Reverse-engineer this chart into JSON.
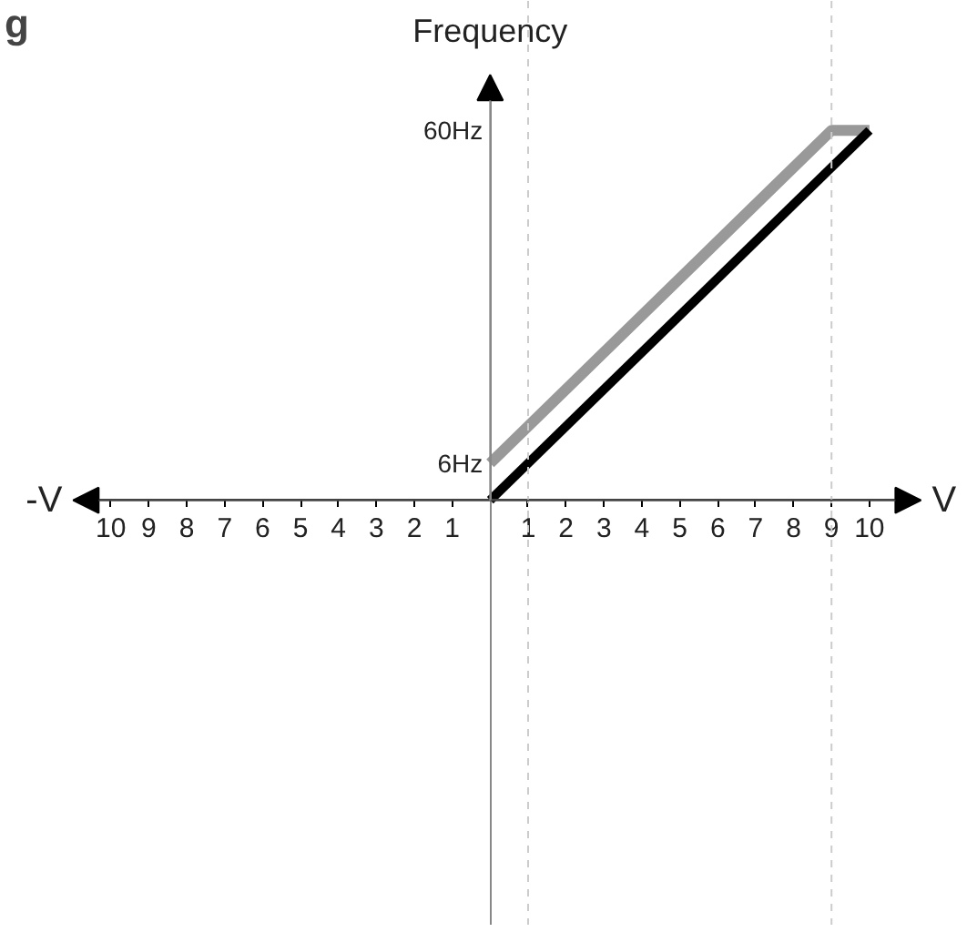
{
  "chart_data": {
    "type": "line",
    "ylabel": "Frequency",
    "xlabel": "V",
    "annotations": [
      "g",
      "-V"
    ],
    "series": [
      {
        "color": "#999999",
        "x": [
          0,
          9,
          10
        ],
        "values": [
          6,
          60,
          60
        ]
      },
      {
        "color": "#000000",
        "x": [
          0,
          10
        ],
        "values": [
          0,
          60
        ]
      }
    ],
    "xlim": [
      -12.9,
      12.5
    ],
    "ylim": [
      -69,
      81
    ],
    "xticks": [
      {
        "value": -10,
        "label": "10"
      },
      {
        "value": -9,
        "label": "9"
      },
      {
        "value": -8,
        "label": "8"
      },
      {
        "value": -7,
        "label": "7"
      },
      {
        "value": -6,
        "label": "6"
      },
      {
        "value": -5,
        "label": "5"
      },
      {
        "value": -4,
        "label": "4"
      },
      {
        "value": -3,
        "label": "3"
      },
      {
        "value": -2,
        "label": "2"
      },
      {
        "value": -1,
        "label": "1"
      },
      1,
      2,
      3,
      4,
      5,
      6,
      7,
      8,
      9,
      10
    ],
    "yticks": [
      {
        "value": 6,
        "label": "6Hz"
      },
      {
        "value": 60,
        "label": "60Hz"
      }
    ],
    "ref_lines": [
      {
        "axis": "x",
        "value": 1,
        "color": "#cccccc",
        "line_style": "dashed"
      },
      {
        "axis": "x",
        "value": 9,
        "color": "#cccccc",
        "line_style": "dashed"
      }
    ],
    "marker": "none",
    "line_style": "solid"
  }
}
